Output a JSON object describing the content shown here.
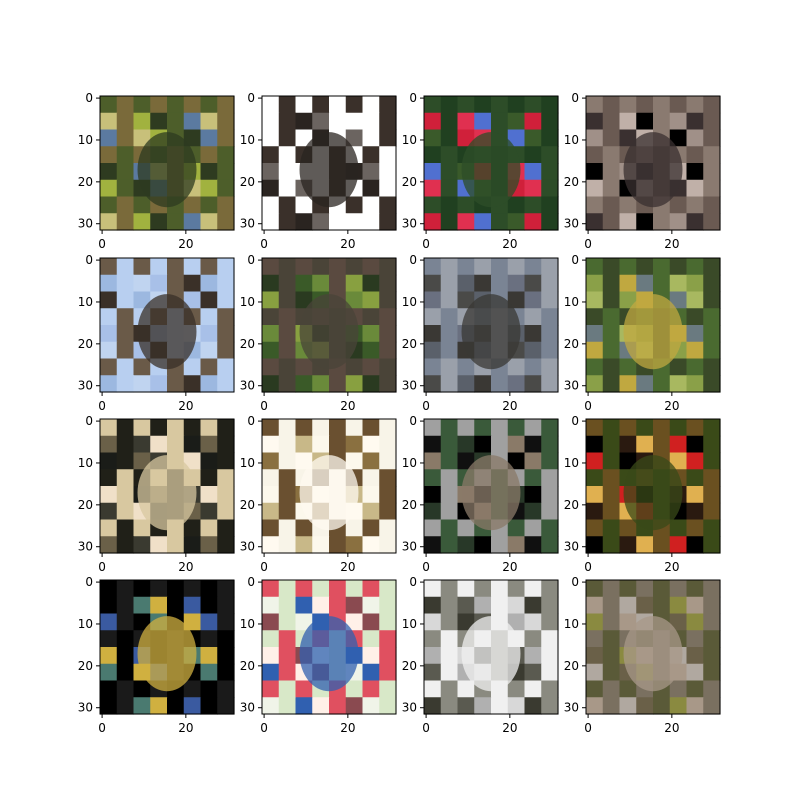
{
  "figure": {
    "grid": {
      "rows": 4,
      "cols": 4
    },
    "image_size": 32,
    "x_ticks": [
      "0",
      "20"
    ],
    "y_ticks": [
      "0",
      "10",
      "20",
      "30"
    ],
    "panels": [
      {
        "subject": "green-yellow foliage with bird",
        "colors": [
          "#4d5e2a",
          "#a1b23f",
          "#2e3b20",
          "#7a6a3a",
          "#5b7aa0",
          "#c8c07a"
        ]
      },
      {
        "subject": "dark bird on white background",
        "colors": [
          "#ffffff",
          "#ffffff",
          "#2a2420",
          "#6b6460",
          "#3a302a",
          "#ffffff"
        ]
      },
      {
        "subject": "red bird with green and blue",
        "colors": [
          "#3a5a2a",
          "#d0203a",
          "#2d4d28",
          "#e03050",
          "#5070d0",
          "#204020"
        ]
      },
      {
        "subject": "brown bark texture",
        "colors": [
          "#6a5a52",
          "#a09088",
          "#3a3030",
          "#8a7a70",
          "#c0b0a8",
          "#000000"
        ]
      },
      {
        "subject": "dark bird against light blue sky",
        "colors": [
          "#a8c0e8",
          "#b8cff0",
          "#3a3028",
          "#9cb8e0",
          "#6a5a48",
          "#c0d4f0"
        ]
      },
      {
        "subject": "grey bird in green leaves",
        "colors": [
          "#3a5a28",
          "#6a8a3a",
          "#4a4438",
          "#88a040",
          "#2a3a20",
          "#5a4a40"
        ]
      },
      {
        "subject": "grey bird on grey rock",
        "colors": [
          "#7a8494",
          "#5a606a",
          "#3a3834",
          "#9aa0aa",
          "#6a7080",
          "#4a4a48"
        ]
      },
      {
        "subject": "yellow-grey bird in green foliage",
        "colors": [
          "#8aa048",
          "#4a6a30",
          "#c0a840",
          "#6a7a80",
          "#3a4a28",
          "#a8b860"
        ]
      },
      {
        "subject": "pale bird on dark background",
        "colors": [
          "#1a1c18",
          "#6a6048",
          "#d8c8a0",
          "#3a3a30",
          "#f0e0c8",
          "#202018"
        ]
      },
      {
        "subject": "brown bird on cream background",
        "colors": [
          "#f8f4e8",
          "#8a7040",
          "#fffaf0",
          "#6a5030",
          "#c8b888",
          "#fcf8ec"
        ]
      },
      {
        "subject": "colorful bird on black background",
        "colors": [
          "#000000",
          "#3a5a3a",
          "#8a7a68",
          "#101010",
          "#a0a0a0",
          "#283828"
        ]
      },
      {
        "subject": "dark red and yellow shapes",
        "colors": [
          "#2a1a10",
          "#e0b050",
          "#3a4a18",
          "#d02020",
          "#000000",
          "#6a5020"
        ]
      },
      {
        "subject": "green-blue bird on black",
        "colors": [
          "#000000",
          "#4a7a70",
          "#d0b040",
          "#1a1a1a",
          "#3a5aa0",
          "#000000"
        ]
      },
      {
        "subject": "red and blue bird on pale background",
        "colors": [
          "#f0f4e8",
          "#e05060",
          "#3060b0",
          "#fff0e8",
          "#d8e8c8",
          "#8a4a50"
        ]
      },
      {
        "subject": "dark bird on grey-white background",
        "colors": [
          "#d8d8d8",
          "#3a3a30",
          "#f0f0f0",
          "#5a5a50",
          "#b0b0b0",
          "#8a8a80"
        ]
      },
      {
        "subject": "olive bird with mottled texture",
        "colors": [
          "#7a7060",
          "#8a8a40",
          "#a89888",
          "#5a5a38",
          "#b0a8a0",
          "#6a6048"
        ]
      }
    ]
  }
}
